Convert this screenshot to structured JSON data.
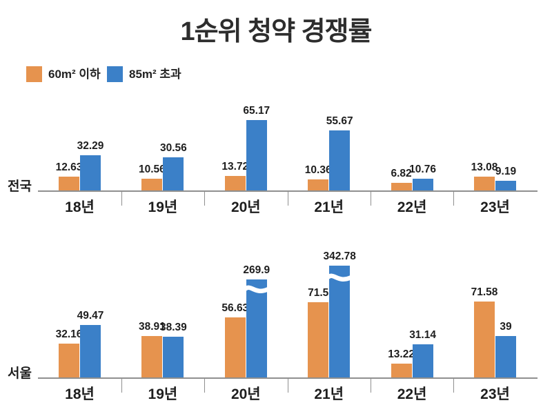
{
  "title": "1순위 청약 경쟁률",
  "legend": {
    "items": [
      {
        "label": "60m² 이하",
        "series": "series1"
      },
      {
        "label": "85m² 초과",
        "series": "series2"
      }
    ]
  },
  "colors": {
    "series1": "#E6934E",
    "series2": "#3B80C8",
    "axis": "#8F8F8F",
    "text": "#222222"
  },
  "chart_data": [
    {
      "type": "bar",
      "row_label": "전국",
      "categories": [
        "18년",
        "19년",
        "20년",
        "21년",
        "22년",
        "23년"
      ],
      "series": [
        {
          "name": "60m² 이하",
          "color": "series1",
          "values": [
            12.63,
            10.56,
            13.72,
            10.36,
            6.82,
            13.08
          ],
          "labels": [
            "12.63",
            "10.56",
            "13.72",
            "10.36",
            "6.82",
            "13.08"
          ]
        },
        {
          "name": "85m² 초과",
          "color": "series2",
          "values": [
            32.29,
            30.56,
            65.17,
            55.67,
            10.76,
            9.19
          ],
          "labels": [
            "32.29",
            "30.56",
            "65.17",
            "55.67",
            "10.76",
            "9.19"
          ]
        }
      ],
      "broken_bars": [],
      "grid": false,
      "legend_position": "top-left",
      "ylim": [
        0,
        70
      ]
    },
    {
      "type": "bar",
      "row_label": "서울",
      "categories": [
        "18년",
        "19년",
        "20년",
        "21년",
        "22년",
        "23년"
      ],
      "series": [
        {
          "name": "60m² 이하",
          "color": "series1",
          "values": [
            32.16,
            38.91,
            56.63,
            71.5,
            13.22,
            71.58
          ],
          "labels": [
            "32.16",
            "38.91",
            "56.63",
            "71.5",
            "13.22",
            "71.58"
          ]
        },
        {
          "name": "85m² 초과",
          "color": "series2",
          "values": [
            49.47,
            38.39,
            269.9,
            342.78,
            31.14,
            39
          ],
          "labels": [
            "49.47",
            "38.39",
            "269.9",
            "342.78",
            "31.14",
            "39"
          ]
        }
      ],
      "broken_bars": [
        {
          "category": "20년",
          "series": "85m² 초과",
          "mark": "white wavy axis-break, bar truncated"
        },
        {
          "category": "21년",
          "series": "85m² 초과",
          "mark": "white wavy axis-break, bar truncated"
        }
      ],
      "grid": false,
      "ylim": [
        0,
        120
      ]
    }
  ]
}
